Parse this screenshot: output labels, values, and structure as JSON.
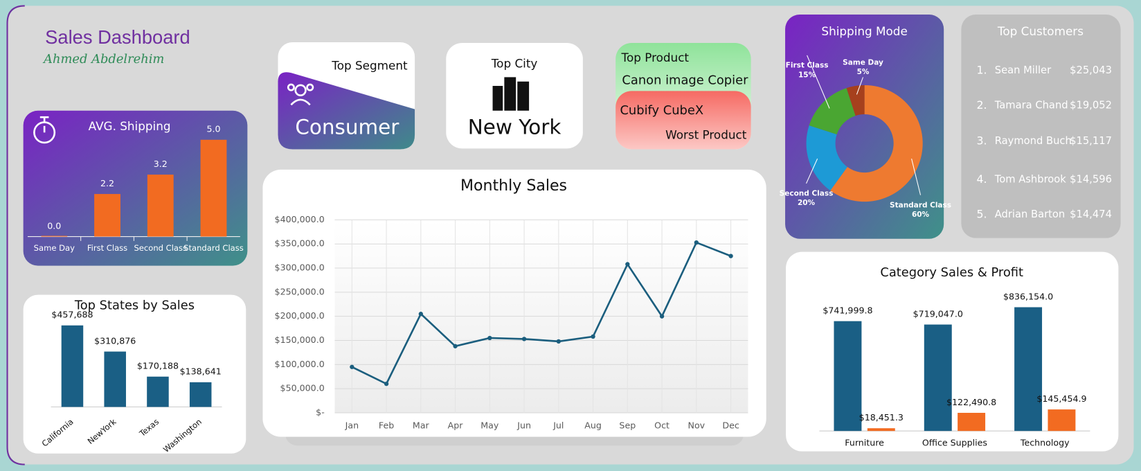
{
  "header": {
    "title": "Sales Dashboard",
    "author": "Ahmed Abdelrehim"
  },
  "cards": {
    "top_segment": {
      "label": "Top Segment",
      "value": "Consumer"
    },
    "top_city": {
      "label": "Top City",
      "value": "New York"
    },
    "products": {
      "top_label": "Top Product",
      "top": "Canon image Copier",
      "worst": "Cubify CubeX",
      "worst_label": "Worst Product"
    }
  },
  "top_customers": {
    "title": "Top Customers",
    "rows": [
      {
        "rank": "1.",
        "name": "Sean Miller",
        "amount": "$25,043"
      },
      {
        "rank": "2.",
        "name": "Tamara Chand",
        "amount": "$19,052"
      },
      {
        "rank": "3.",
        "name": "Raymond Buch",
        "amount": "$15,117"
      },
      {
        "rank": "4.",
        "name": "Tom Ashbrook",
        "amount": "$14,596"
      },
      {
        "rank": "5.",
        "name": "Adrian Barton",
        "amount": "$14,474"
      }
    ]
  },
  "chart_data": [
    {
      "type": "bar",
      "title": "AVG. Shipping",
      "categories": [
        "Same Day",
        "First Class",
        "Second Class",
        "Standard Class"
      ],
      "values": [
        0.0,
        2.2,
        3.2,
        5.0
      ],
      "value_labels": [
        "0.0",
        "2.2",
        "3.2",
        "5.0"
      ],
      "color": "#f26b21"
    },
    {
      "type": "bar",
      "title": "Top States by Sales",
      "categories": [
        "California",
        "NewYork",
        "Texas",
        "Washington"
      ],
      "values": [
        457688,
        310876,
        170188,
        138641
      ],
      "value_labels": [
        "$457,688",
        "$310,876",
        "$170,188",
        "$138,641"
      ],
      "color": "#1a5f85"
    },
    {
      "type": "line",
      "title": "Monthly Sales",
      "categories": [
        "Jan",
        "Feb",
        "Mar",
        "Apr",
        "May",
        "Jun",
        "Jul",
        "Aug",
        "Sep",
        "Oct",
        "Nov",
        "Dec"
      ],
      "values": [
        95000,
        60000,
        205000,
        138000,
        155000,
        153000,
        148000,
        158000,
        308000,
        200000,
        353000,
        325000
      ],
      "color": "#1b5e7e",
      "ylim": [
        0,
        400000
      ],
      "yticks": [
        {
          "value": 0,
          "label": "$-"
        },
        {
          "value": 50000,
          "label": "$50,000.0"
        },
        {
          "value": 100000,
          "label": "$100,000.0"
        },
        {
          "value": 150000,
          "label": "$150,000.0"
        },
        {
          "value": 200000,
          "label": "$200,000.0"
        },
        {
          "value": 250000,
          "label": "$250,000.0"
        },
        {
          "value": 300000,
          "label": "$300,000.0"
        },
        {
          "value": 350000,
          "label": "$350,000.0"
        },
        {
          "value": 400000,
          "label": "$400,000.0"
        }
      ],
      "grid": true
    },
    {
      "type": "pie",
      "title": "Shipping Mode",
      "categories": [
        "Standard Class",
        "Second Class",
        "First Class",
        "Same Day"
      ],
      "values": [
        60,
        20,
        15,
        5
      ],
      "value_labels": [
        "60%",
        "20%",
        "15%",
        "5%"
      ],
      "colors": [
        "#ee7a30",
        "#1d9ad6",
        "#4aa632",
        "#a6401d"
      ]
    },
    {
      "type": "bar",
      "title": "Category Sales & Profit",
      "categories": [
        "Furniture",
        "Office Supplies",
        "Technology"
      ],
      "series": [
        {
          "color": "#1a5f85",
          "values": [
            741999.8,
            719047.0,
            836154.0
          ],
          "value_labels": [
            "$741,999.8",
            "$719,047.0",
            "$836,154.0"
          ]
        },
        {
          "color": "#f26b21",
          "values": [
            18451.3,
            122490.8,
            145454.9
          ],
          "value_labels": [
            "$18,451.3",
            "$122,490.8",
            "$145,454.9"
          ]
        }
      ]
    }
  ]
}
